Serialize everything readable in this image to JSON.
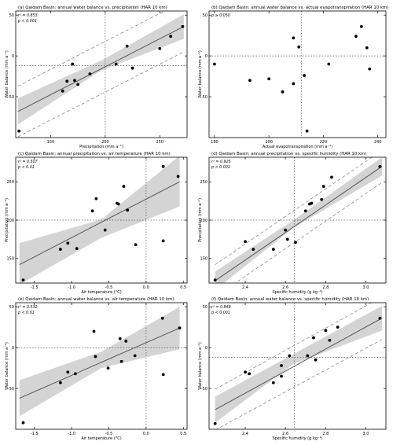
{
  "chart_data": [
    {
      "type": "scatter",
      "title": "(a)  Qaidam Basin: annual water balance vs. precipitation (HAR 10 km)",
      "stats": [
        "r² = 0.853",
        "p < 0.001"
      ],
      "xlabel": "Precipitation (mm a⁻¹)",
      "ylabel": "Water balance (mm a⁻¹)",
      "xlim": [
        118,
        275
      ],
      "ylim": [
        -100,
        55
      ],
      "xticks": [
        150,
        200,
        250
      ],
      "xtick_labels": [
        "150",
        "200",
        "250"
      ],
      "yticks": [
        -50,
        0,
        50
      ],
      "ytick_labels": [
        "-50",
        "0",
        "50"
      ],
      "ref_x": 200,
      "ref_y": -12,
      "fit": {
        "x": [
          120,
          272
        ],
        "y": [
          -68,
          36
        ]
      },
      "ci": {
        "x": [
          120,
          196,
          272
        ],
        "upper": [
          -52,
          -6,
          51
        ],
        "lower": [
          -84,
          -18,
          21
        ]
      },
      "pi": {
        "x": [
          120,
          272
        ],
        "upper": [
          -37,
          67
        ],
        "lower": [
          -99,
          5
        ]
      },
      "series": [
        {
          "x": [
            121,
            161,
            165,
            170,
            172,
            175,
            186,
            210,
            220,
            225,
            250,
            260,
            271
          ],
          "y": [
            -92,
            -43,
            -31,
            -10,
            -30,
            -35,
            -22,
            -10,
            12,
            -15,
            9,
            24,
            36
          ]
        }
      ]
    },
    {
      "type": "scatter",
      "title": "(b)  Qaidam Basin: annual water balance vs. actual evapotranspiration (HAR 10 km)",
      "stats": [
        "p ≥ 0.050"
      ],
      "xlabel": "Actual evapotranspiration (mm a⁻¹)",
      "ylabel": "Water balance (mm a⁻¹)",
      "xlim": [
        178,
        243
      ],
      "ylim": [
        -100,
        55
      ],
      "xticks": [
        180,
        200,
        220,
        240
      ],
      "xtick_labels": [
        "180",
        "200",
        "220",
        "240"
      ],
      "yticks": [
        -50,
        0,
        50
      ],
      "ytick_labels": [
        "-50",
        "0",
        "50"
      ],
      "ref_x": 212,
      "ref_y": 0,
      "series": [
        {
          "x": [
            180,
            193,
            200,
            205,
            209,
            209,
            211,
            213,
            214,
            222,
            232,
            234,
            236,
            237
          ],
          "y": [
            -10,
            -30,
            -28,
            -44,
            -34,
            22,
            11,
            -24,
            -92,
            -10,
            24,
            36,
            10,
            -16
          ]
        }
      ]
    },
    {
      "type": "scatter",
      "title": "(c)  Qaidam Basin: annual precipitation vs. air temperature (HAR 10 km)",
      "stats": [
        "r² = 0.507",
        "p < 0.01"
      ],
      "xlabel": "Air temperature (°C)",
      "ylabel": "Precipitation (mm a⁻¹)",
      "xlim": [
        -1.75,
        0.55
      ],
      "ylim": [
        118,
        282
      ],
      "xticks": [
        -1.5,
        -1.0,
        -0.5,
        0.0,
        0.5
      ],
      "xtick_labels": [
        "-1.5",
        "-1.0",
        "-0.5",
        "0.0",
        "0.5"
      ],
      "yticks": [
        150,
        200,
        250
      ],
      "ytick_labels": [
        "150",
        "200",
        "250"
      ],
      "ref_x": 0.0,
      "ref_y": 200,
      "fit": {
        "x": [
          -1.7,
          0.45
        ],
        "y": [
          142,
          250
        ]
      },
      "ci": {
        "x": [
          -1.7,
          -0.6,
          0.45
        ],
        "upper": [
          170,
          201,
          284
        ],
        "lower": [
          116,
          177,
          218
        ]
      },
      "series": [
        {
          "x": [
            -1.65,
            -1.15,
            -1.05,
            -0.93,
            -0.72,
            -0.67,
            -0.55,
            -0.39,
            -0.37,
            -0.3,
            -0.25,
            -0.14,
            0.23,
            0.23,
            0.43
          ],
          "y": [
            122,
            162,
            170,
            163,
            212,
            228,
            187,
            222,
            221,
            244,
            213,
            168,
            270,
            173,
            257
          ]
        }
      ]
    },
    {
      "type": "scatter",
      "title": "(d)  Qaidam Basin: annual precipitation vs. specific humidity (HAR 10 km)",
      "stats": [
        "r² = 0.925",
        "p < 0.001"
      ],
      "xlabel": "Specific humidity (g kg⁻¹)",
      "ylabel": "Precipitation (mm a⁻¹)",
      "xlim": [
        2.22,
        3.1
      ],
      "ylim": [
        118,
        282
      ],
      "xticks": [
        2.4,
        2.6,
        2.8,
        3.0
      ],
      "xtick_labels": [
        "2.4",
        "2.6",
        "2.8",
        "3.0"
      ],
      "yticks": [
        150,
        200,
        250
      ],
      "ytick_labels": [
        "150",
        "200",
        "250"
      ],
      "ref_x": 2.645,
      "ref_y": 200,
      "fit": {
        "x": [
          2.25,
          3.08
        ],
        "y": [
          121,
          270
        ]
      },
      "ci": {
        "x": [
          2.25,
          2.64,
          3.08
        ],
        "upper": [
          133,
          200,
          282
        ],
        "lower": [
          109,
          190,
          258
        ]
      },
      "pi": {
        "x": [
          2.25,
          3.08
        ],
        "upper": [
          142,
          291
        ],
        "lower": [
          100,
          249
        ]
      },
      "series": [
        {
          "x": [
            2.25,
            2.4,
            2.44,
            2.54,
            2.6,
            2.61,
            2.65,
            2.7,
            2.72,
            2.73,
            2.78,
            2.79,
            2.83,
            3.07
          ],
          "y": [
            122,
            172,
            162,
            162,
            187,
            175,
            171,
            212,
            221,
            222,
            227,
            244,
            256,
            270
          ]
        }
      ]
    },
    {
      "type": "scatter",
      "title": "(e)  Qaidam Basin: annual water balance vs. air temperature (HAR 10 km)",
      "stats": [
        "r² = 0.532",
        "p < 0.01"
      ],
      "xlabel": "Air temperature (°C)",
      "ylabel": "Water balance (mm a⁻¹)",
      "xlim": [
        -1.75,
        0.55
      ],
      "ylim": [
        -100,
        55
      ],
      "xticks": [
        -1.5,
        -1.0,
        -0.5,
        0.0,
        0.5
      ],
      "xtick_labels": [
        "-1.5",
        "-1.0",
        "-0.5",
        "0.0",
        "0.5"
      ],
      "yticks": [
        -50,
        0,
        50
      ],
      "ytick_labels": [
        "-50",
        "0",
        "50"
      ],
      "ref_x": 0.0,
      "ref_y": 0,
      "fit": {
        "x": [
          -1.7,
          0.45
        ],
        "y": [
          -62,
          24
        ]
      },
      "ci": {
        "x": [
          -1.7,
          -0.6,
          0.45
        ],
        "upper": [
          -40,
          -5,
          50
        ],
        "lower": [
          -84,
          -25,
          -2
        ]
      },
      "series": [
        {
          "x": [
            -1.65,
            -1.15,
            -1.05,
            -0.95,
            -0.7,
            -0.68,
            -0.51,
            -0.35,
            -0.33,
            -0.27,
            -0.15,
            0.22,
            0.23,
            0.45
          ],
          "y": [
            -92,
            -43,
            -30,
            -32,
            20,
            -11,
            -25,
            11,
            -17,
            8,
            -10,
            36,
            -33,
            24
          ]
        }
      ]
    },
    {
      "type": "scatter",
      "title": "(f)  Qaidam Basin: annual water balance vs. specific humidity (HAR 10 km)",
      "stats": [
        "r² = 0.849",
        "p < 0.001"
      ],
      "xlabel": "Specific humidity (g kg⁻¹)",
      "ylabel": "Water balance (mm a⁻¹)",
      "xlim": [
        2.22,
        3.1
      ],
      "ylim": [
        -100,
        55
      ],
      "xticks": [
        2.4,
        2.6,
        2.8,
        3.0
      ],
      "xtick_labels": [
        "2.4",
        "2.6",
        "2.8",
        "3.0"
      ],
      "yticks": [
        -50,
        0,
        50
      ],
      "ytick_labels": [
        "-50",
        "0",
        "50"
      ],
      "ref_x": 2.645,
      "ref_y": -12,
      "fit": {
        "x": [
          2.25,
          3.08
        ],
        "y": [
          -76,
          36
        ]
      },
      "ci": {
        "x": [
          2.25,
          2.64,
          3.08
        ],
        "upper": [
          -60,
          -8,
          51
        ],
        "lower": [
          -92,
          -20,
          21
        ]
      },
      "pi": {
        "x": [
          2.25,
          3.08
        ],
        "upper": [
          -51,
          62
        ],
        "lower": [
          -101,
          10
        ]
      },
      "series": [
        {
          "x": [
            2.25,
            2.4,
            2.42,
            2.54,
            2.58,
            2.58,
            2.62,
            2.71,
            2.74,
            2.75,
            2.8,
            2.82,
            2.86,
            3.07
          ],
          "y": [
            -93,
            -30,
            -32,
            -43,
            -35,
            -22,
            -10,
            -10,
            12,
            -15,
            21,
            9,
            25,
            36
          ]
        }
      ]
    }
  ]
}
